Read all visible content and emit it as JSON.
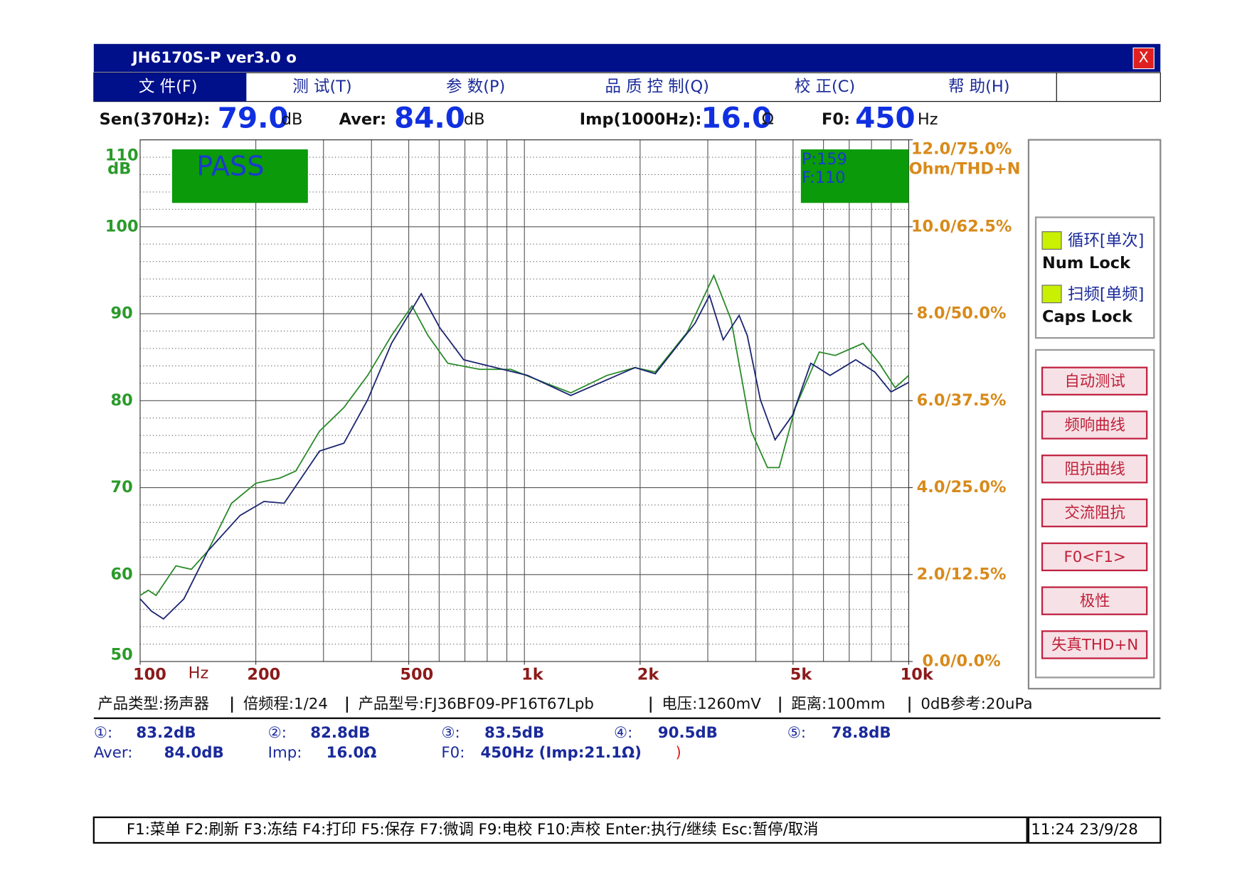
{
  "window": {
    "title": "JH6170S-P   ver3.0  o",
    "close": "X",
    "menu": [
      "文 件(F)",
      "测 试(T)",
      "参 数(P)",
      "品 质 控 制(Q)",
      "校 正(C)",
      "帮 助(H)"
    ]
  },
  "readouts": [
    {
      "label": "Sen(370Hz):",
      "value": "79.0",
      "unit": "dB"
    },
    {
      "label": "Aver:",
      "value": "84.0",
      "unit": "dB"
    },
    {
      "label": "Imp(1000Hz):",
      "value": "16.0",
      "unit": "Ω"
    },
    {
      "label": "F0:",
      "value": "450",
      "unit": "Hz"
    }
  ],
  "chart_data": {
    "type": "line",
    "xscale": "log",
    "xlim": [
      100,
      10000
    ],
    "ylim": [
      50,
      110
    ],
    "y2lim": [
      0,
      12
    ],
    "ylabel": "dB",
    "xlabel": "Hz",
    "y2label": "Ohm/THD+N",
    "xticks": [
      100,
      200,
      500,
      {
        "value": 1000,
        "label": "1k"
      },
      {
        "value": 2000,
        "label": "2k"
      },
      {
        "value": 5000,
        "label": "5k"
      },
      {
        "value": 10000,
        "label": "10k"
      }
    ],
    "xgrid": [
      200,
      300,
      400,
      500,
      600,
      700,
      800,
      900,
      1000,
      2000,
      3000,
      4000,
      5000,
      6000,
      7000,
      8000,
      9000
    ],
    "yticks": [
      50,
      60,
      70,
      80,
      90,
      100,
      110
    ],
    "yminor": [
      52,
      54,
      56,
      58,
      62,
      64,
      66,
      68,
      72,
      74,
      76,
      78,
      82,
      84,
      86,
      88,
      92,
      94,
      96,
      98,
      102,
      104,
      106,
      108
    ],
    "y2ticks": [
      {
        "value": 0,
        "label": "0.0/0.0%"
      },
      {
        "value": 2,
        "label": "2.0/12.5%"
      },
      {
        "value": 4,
        "label": "4.0/25.0%"
      },
      {
        "value": 6,
        "label": "6.0/37.5%"
      },
      {
        "value": 8,
        "label": "8.0/50.0%"
      },
      {
        "value": 10,
        "label": "10.0/62.5%"
      },
      {
        "value": 12,
        "label": "12.0/75.0%"
      }
    ],
    "grid": true,
    "annotations": [
      {
        "text": "PASS",
        "color": "#0a9a0a"
      },
      {
        "text": "P:159"
      },
      {
        "text": "F:110"
      }
    ],
    "series": [
      {
        "color": "#2a8a2a",
        "x": [
          100,
          105,
          110,
          124,
          136,
          150,
          173,
          200,
          231,
          254,
          293,
          339,
          391,
          451,
          510,
          561,
          632,
          765,
          922,
          1123,
          1320,
          1640,
          1940,
          2190,
          2655,
          3110,
          3450,
          3890,
          4290,
          4600,
          5070,
          5850,
          6440,
          7610,
          8380,
          9220,
          10000
        ],
        "values": [
          57.6,
          58.2,
          57.6,
          61.0,
          60.6,
          62.7,
          68.2,
          70.5,
          71.1,
          71.9,
          76.5,
          79.2,
          82.9,
          87.5,
          90.9,
          87.5,
          84.3,
          83.6,
          83.6,
          82.1,
          80.9,
          82.9,
          83.8,
          83.3,
          87.9,
          94.4,
          89.3,
          76.5,
          72.3,
          72.3,
          79.2,
          85.6,
          85.2,
          86.6,
          84.3,
          81.5,
          82.9
        ]
      },
      {
        "color": "#1a2470",
        "x": [
          100,
          107,
          115,
          130,
          150,
          182,
          210,
          237,
          293,
          339,
          391,
          451,
          539,
          602,
          695,
          840,
          1019,
          1320,
          1640,
          1940,
          2190,
          2780,
          3030,
          3290,
          3620,
          3800,
          4110,
          4490,
          4980,
          5560,
          6240,
          7280,
          8160,
          8990,
          10000
        ],
        "values": [
          57.2,
          55.8,
          54.9,
          57.2,
          62.7,
          66.8,
          68.4,
          68.2,
          74.2,
          75.1,
          80.1,
          86.6,
          92.3,
          88.4,
          84.7,
          83.8,
          82.9,
          80.6,
          82.4,
          83.8,
          83.1,
          88.9,
          92.1,
          87.0,
          89.8,
          87.5,
          80.1,
          75.5,
          78.3,
          84.3,
          82.9,
          84.7,
          83.3,
          81.0,
          82.1
        ]
      }
    ]
  },
  "status_line": [
    "产品类型:扬声器",
    "倍频程:1/24",
    "产品型号:FJ36BF09-PF16T67Lpb",
    "电压:1260mV",
    "距离:100mm",
    "0dB参考:20uPa"
  ],
  "measurements": [
    {
      "label": "①:",
      "value": "83.2dB"
    },
    {
      "label": "②:",
      "value": "82.8dB"
    },
    {
      "label": "③:",
      "value": "83.5dB"
    },
    {
      "label": "④:",
      "value": "90.5dB"
    },
    {
      "label": "⑤:",
      "value": "78.8dB"
    },
    {
      "label": "Aver:",
      "value": "84.0dB"
    },
    {
      "label": "Imp:",
      "value": "16.0Ω"
    },
    {
      "label": "F0:",
      "value": "450Hz (Imp:21.1Ω)"
    }
  ],
  "bracket": ")",
  "right_panel": {
    "toggles": [
      {
        "label": "循环[单次]",
        "key": "Num Lock"
      },
      {
        "label": "扫频[单频]",
        "key": "Caps Lock"
      }
    ],
    "buttons": [
      "自动测试",
      "频响曲线",
      "阻抗曲线",
      "交流阻抗",
      "F0<F1>",
      "极性",
      "失真THD+N"
    ]
  },
  "function_keys": "F1:菜单  F2:刷新  F3:冻结  F4:打印  F5:保存  F7:微调  F9:电校  F10:声校  Enter:执行/继续   Esc:暂停/取消",
  "clock": "11:24  23/9/28"
}
